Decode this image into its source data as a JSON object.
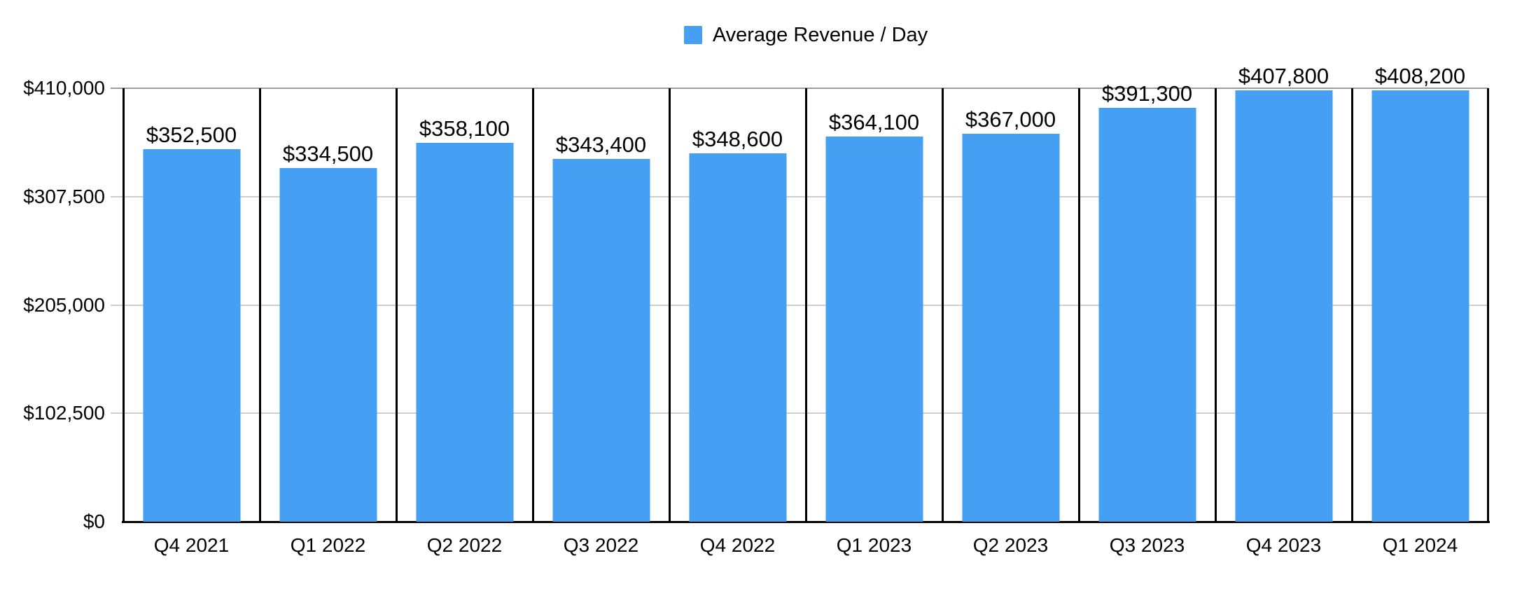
{
  "legend": {
    "label": "Average Revenue / Day"
  },
  "chart_data": {
    "type": "bar",
    "title": "",
    "xlabel": "",
    "ylabel": "",
    "categories": [
      "Q4 2021",
      "Q1 2022",
      "Q2 2022",
      "Q3 2022",
      "Q4 2022",
      "Q1 2023",
      "Q2 2023",
      "Q3 2023",
      "Q4 2023",
      "Q1 2024"
    ],
    "series": [
      {
        "name": "Average Revenue / Day",
        "values": [
          352500,
          334500,
          358100,
          343400,
          348600,
          364100,
          367000,
          391300,
          407800,
          408200
        ],
        "value_labels": [
          "$352,500",
          "$334,500",
          "$358,100",
          "$343,400",
          "$348,600",
          "$364,100",
          "$367,000",
          "$391,300",
          "$407,800",
          "$408,200"
        ]
      }
    ],
    "ylim": [
      0,
      410000
    ],
    "yticks": [
      {
        "value": 410000,
        "label": "$410,000"
      },
      {
        "value": 307500,
        "label": "$307,500"
      },
      {
        "value": 205000,
        "label": "$205,000"
      },
      {
        "value": 102500,
        "label": "$102,500"
      },
      {
        "value": 0,
        "label": "$0"
      }
    ],
    "grid": true,
    "legend_position": "top",
    "colors": {
      "bar": "#459FF2",
      "gridline": "#cfcfcf",
      "plot_top_line": "#9e9e9e",
      "axis": "#000000",
      "text": "#000000",
      "background": "#ffffff"
    }
  }
}
